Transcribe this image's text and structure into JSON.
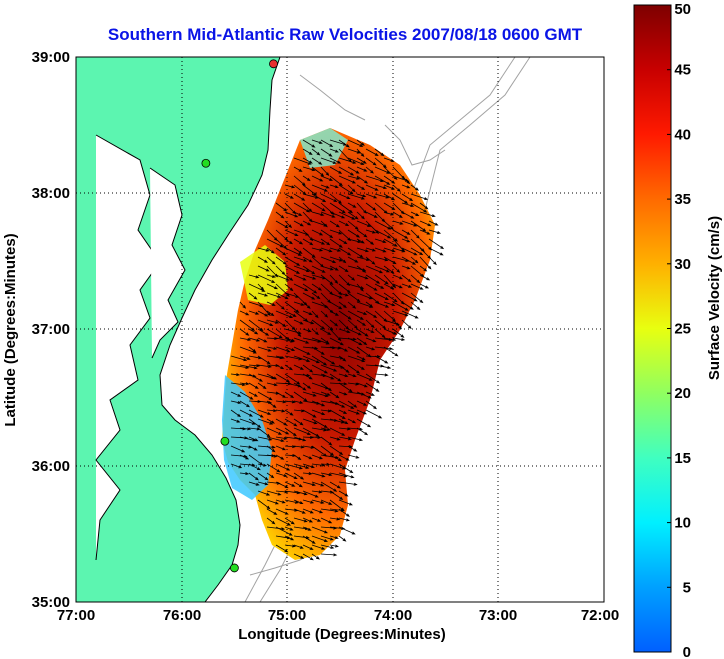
{
  "title": "Southern Mid-Atlantic Raw Velocities 2007/08/18 0600 GMT",
  "x_axis": {
    "label": "Longitude (Degrees:Minutes)",
    "ticks": [
      "77:00",
      "76:00",
      "75:00",
      "74:00",
      "73:00",
      "72:00"
    ]
  },
  "y_axis": {
    "label": "Latitude (Degrees:Minutes)",
    "ticks": [
      "39:00",
      "38:00",
      "37:00",
      "36:00",
      "35:00"
    ]
  },
  "colorbar": {
    "label": "Surface Velocity (cm/s)",
    "ticks": [
      "0",
      "5",
      "10",
      "15",
      "20",
      "25",
      "30",
      "35",
      "40",
      "45",
      "50"
    ],
    "min": 0,
    "max": 50,
    "colormap": "jet"
  },
  "chart_data": {
    "type": "heatmap",
    "map_extent": {
      "lon": [
        -77,
        -72
      ],
      "lat": [
        35,
        39
      ]
    },
    "grid": "dotted",
    "land_color": "#5cf5b0",
    "bathymetry_color": "#a0a0a0",
    "stations": [
      {
        "lon": -75.13,
        "lat": 38.95,
        "color": "#e83030"
      },
      {
        "lon": -75.77,
        "lat": 38.22,
        "color": "#22dd22"
      },
      {
        "lon": -75.59,
        "lat": 36.18,
        "color": "#22dd22"
      },
      {
        "lon": -75.5,
        "lat": 35.25,
        "color": "#22dd22"
      }
    ]
  }
}
